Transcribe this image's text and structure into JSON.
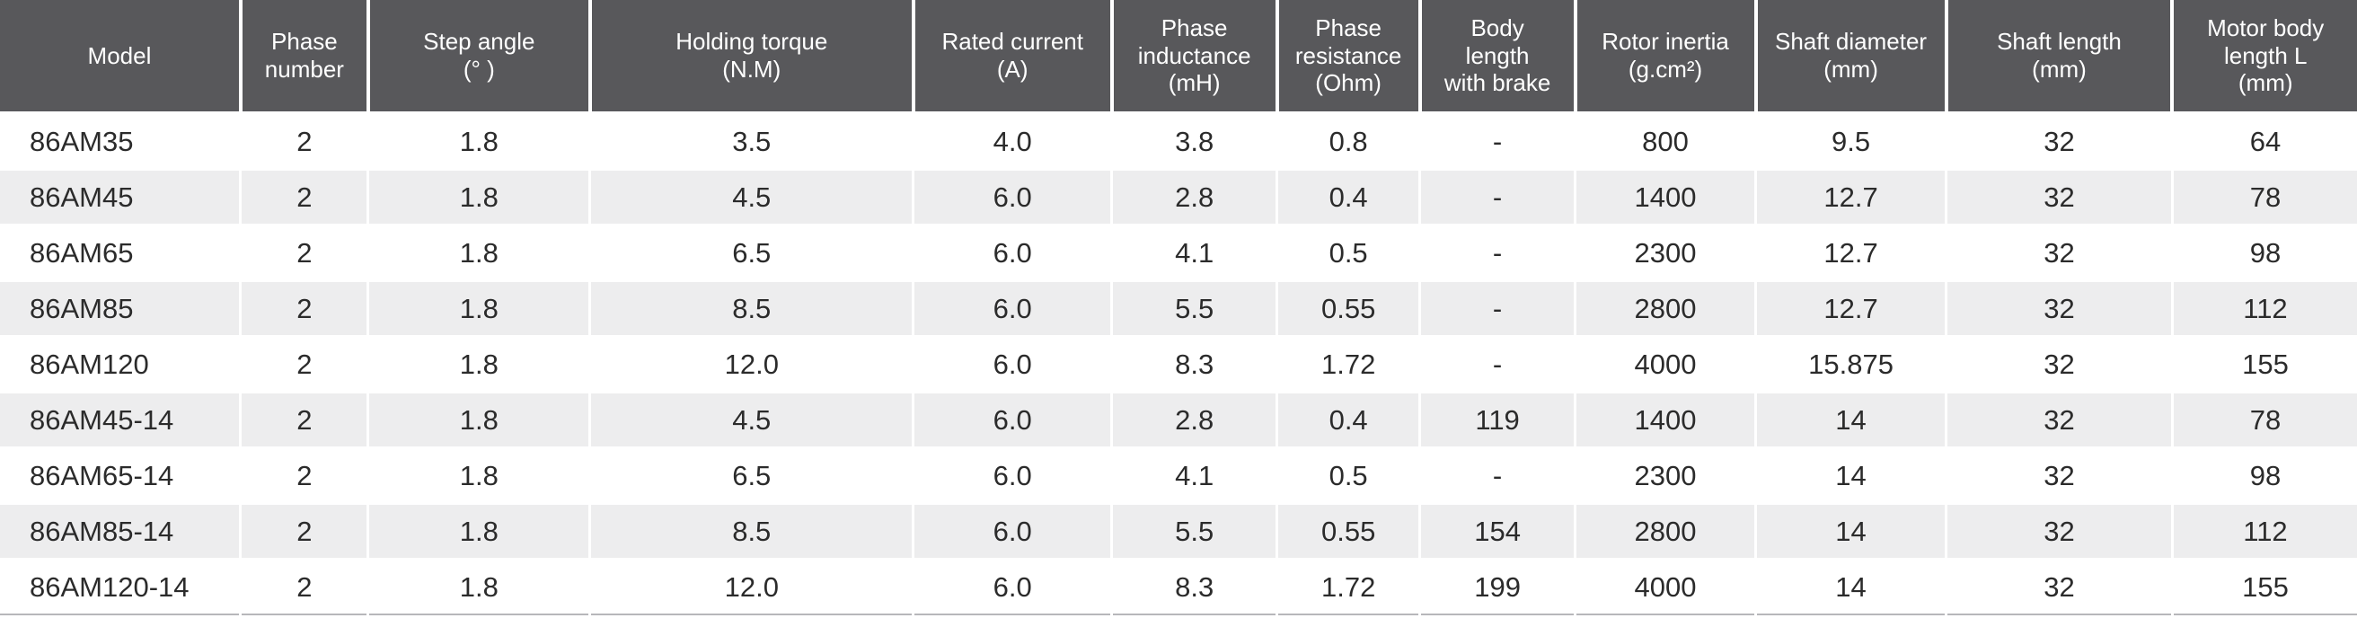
{
  "colors": {
    "header_background": "#58585b",
    "header_text": "#ffffff",
    "row_alternate_background": "#ededee",
    "row_background": "#ffffff",
    "body_text": "#2b2b2b",
    "cell_separator": "#ffffff",
    "bottom_border": "#b7b7ba"
  },
  "table": {
    "columns": [
      {
        "id": "model",
        "label": "Model",
        "width_pct": 10.21
      },
      {
        "id": "phase-number",
        "label": "Phase\nnumber",
        "width_pct": 5.41
      },
      {
        "id": "step-angle",
        "label": "Step angle\n(° )",
        "width_pct": 9.41
      },
      {
        "id": "holding-torque",
        "label": "Holding torque\n(N.M)",
        "width_pct": 13.72
      },
      {
        "id": "rated-current",
        "label": "Rated current\n(A)",
        "width_pct": 8.42
      },
      {
        "id": "phase-inductance",
        "label": "Phase\ninductance\n(mH)",
        "width_pct": 7.01
      },
      {
        "id": "phase-resistance",
        "label": "Phase\nresistance\n(Ohm)",
        "width_pct": 6.06
      },
      {
        "id": "body-length-brake",
        "label": "Body\nlength\nwith brake",
        "width_pct": 6.59
      },
      {
        "id": "rotor-inertia",
        "label": "Rotor inertia\n(g.cm²)",
        "width_pct": 7.66
      },
      {
        "id": "shaft-diameter",
        "label": "Shaft diameter\n(mm)",
        "width_pct": 8.08
      },
      {
        "id": "shaft-length",
        "label": "Shaft length\n(mm)",
        "width_pct": 9.6
      },
      {
        "id": "motor-body-length",
        "label": "Motor body\nlength L\n(mm)",
        "width_pct": 7.83
      }
    ],
    "rows": [
      {
        "cells": [
          "86AM35",
          "2",
          "1.8",
          "3.5",
          "4.0",
          "3.8",
          "0.8",
          "-",
          "800",
          "9.5",
          "32",
          "64"
        ]
      },
      {
        "cells": [
          "86AM45",
          "2",
          "1.8",
          "4.5",
          "6.0",
          "2.8",
          "0.4",
          "-",
          "1400",
          "12.7",
          "32",
          "78"
        ]
      },
      {
        "cells": [
          "86AM65",
          "2",
          "1.8",
          "6.5",
          "6.0",
          "4.1",
          "0.5",
          "-",
          "2300",
          "12.7",
          "32",
          "98"
        ]
      },
      {
        "cells": [
          "86AM85",
          "2",
          "1.8",
          "8.5",
          "6.0",
          "5.5",
          "0.55",
          "-",
          "2800",
          "12.7",
          "32",
          "112"
        ]
      },
      {
        "cells": [
          "86AM120",
          "2",
          "1.8",
          "12.0",
          "6.0",
          "8.3",
          "1.72",
          "-",
          "4000",
          "15.875",
          "32",
          "155"
        ]
      },
      {
        "cells": [
          "86AM45-14",
          "2",
          "1.8",
          "4.5",
          "6.0",
          "2.8",
          "0.4",
          "119",
          "1400",
          "14",
          "32",
          "78"
        ]
      },
      {
        "cells": [
          "86AM65-14",
          "2",
          "1.8",
          "6.5",
          "6.0",
          "4.1",
          "0.5",
          "-",
          "2300",
          "14",
          "32",
          "98"
        ]
      },
      {
        "cells": [
          "86AM85-14",
          "2",
          "1.8",
          "8.5",
          "6.0",
          "5.5",
          "0.55",
          "154",
          "2800",
          "14",
          "32",
          "112"
        ]
      },
      {
        "cells": [
          "86AM120-14",
          "2",
          "1.8",
          "12.0",
          "6.0",
          "8.3",
          "1.72",
          "199",
          "4000",
          "14",
          "32",
          "155"
        ]
      }
    ]
  }
}
